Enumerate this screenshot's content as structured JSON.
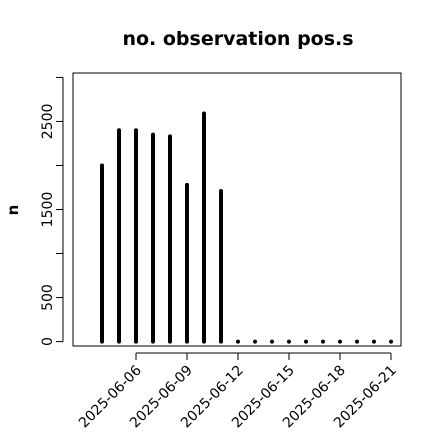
{
  "chart_data": {
    "type": "bar",
    "title": "no. observation pos.s",
    "xlabel": "",
    "ylabel": "n",
    "x": [
      "2025-06-04",
      "2025-06-05",
      "2025-06-06",
      "2025-06-07",
      "2025-06-08",
      "2025-06-09",
      "2025-06-10",
      "2025-06-11",
      "2025-06-12",
      "2025-06-13",
      "2025-06-14",
      "2025-06-15",
      "2025-06-16",
      "2025-06-17",
      "2025-06-18",
      "2025-06-19",
      "2025-06-20",
      "2025-06-21"
    ],
    "values": [
      2000,
      2400,
      2400,
      2350,
      2330,
      1780,
      2590,
      1710,
      0,
      0,
      0,
      0,
      0,
      0,
      0,
      0,
      0,
      0
    ],
    "ylim": [
      -50,
      3050
    ],
    "yticks": [
      0,
      500,
      1500,
      2500
    ],
    "xtick_labels": [
      "2025-06-06",
      "2025-06-09",
      "2025-06-12",
      "2025-06-15",
      "2025-06-18",
      "2025-06-21"
    ],
    "highlight_tick": "2025-06-12",
    "grid": false,
    "colors": {
      "bar": "#000000",
      "axis": "#000000",
      "highlight": "#1e8c1e"
    }
  }
}
